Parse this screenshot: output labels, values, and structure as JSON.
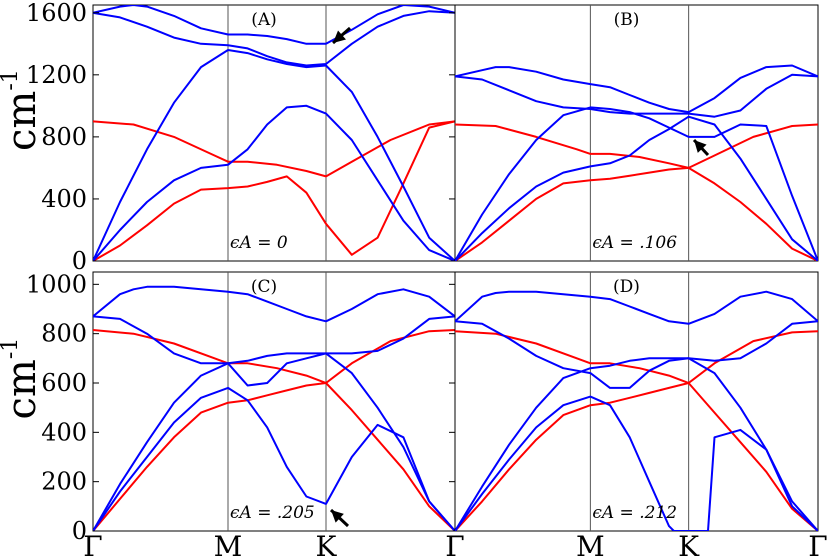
{
  "chart_data": [
    {
      "type": "line",
      "panel_label": "(A)",
      "annotation": "ϵA = 0",
      "x_ticks": [
        "Γ",
        "M",
        "K",
        "Γ"
      ],
      "ylabel": "cm-1",
      "y_ticks": [
        0,
        400,
        800,
        1200,
        1600
      ],
      "ylim": [
        0,
        1650
      ],
      "arrow": "at K near 1400",
      "series": [
        {
          "color": "#ff0000",
          "x": [
            0,
            0.2,
            0.4,
            0.6,
            0.8,
            1,
            1.2,
            1.4,
            1.6,
            1.8,
            2,
            2.2,
            2.4,
            2.6,
            2.8,
            3
          ],
          "values": [
            0,
            100,
            230,
            370,
            460,
            470,
            480,
            510,
            545,
            440,
            240,
            40,
            150,
            500,
            860,
            900
          ]
        },
        {
          "color": "#ff0000",
          "x": [
            0,
            0.3,
            0.6,
            0.9,
            1,
            1.2,
            1.5,
            1.8,
            2,
            2.2,
            2.5,
            2.8,
            3
          ],
          "values": [
            900,
            880,
            800,
            680,
            640,
            640,
            620,
            580,
            545,
            640,
            780,
            880,
            900
          ]
        },
        {
          "color": "#0000ff",
          "x": [
            0,
            0.2,
            0.4,
            0.6,
            0.8,
            1,
            1.2,
            1.4,
            1.6,
            1.8,
            2,
            2.2,
            2.4,
            2.6,
            2.8,
            3
          ],
          "values": [
            0,
            200,
            380,
            520,
            600,
            620,
            720,
            880,
            990,
            1000,
            950,
            780,
            520,
            260,
            70,
            0
          ]
        },
        {
          "color": "#0000ff",
          "x": [
            0,
            0.2,
            0.4,
            0.6,
            0.8,
            1,
            1.2,
            1.4,
            1.6,
            1.8,
            2,
            2.2,
            2.4,
            2.6,
            2.8,
            3
          ],
          "values": [
            0,
            380,
            720,
            1020,
            1250,
            1360,
            1340,
            1300,
            1270,
            1250,
            1260,
            1090,
            800,
            480,
            150,
            0
          ]
        },
        {
          "color": "#0000ff",
          "x": [
            0,
            0.2,
            0.4,
            0.6,
            0.8,
            1,
            1.2,
            1.4,
            1.6,
            1.8,
            2,
            2.2,
            2.4,
            2.6,
            2.8,
            3
          ],
          "values": [
            1600,
            1570,
            1510,
            1440,
            1400,
            1390,
            1370,
            1320,
            1280,
            1260,
            1270,
            1400,
            1510,
            1580,
            1610,
            1600
          ]
        },
        {
          "color": "#0000ff",
          "x": [
            0,
            0.2,
            0.3,
            0.4,
            0.6,
            0.8,
            1,
            1.2,
            1.4,
            1.6,
            1.8,
            2,
            2.2,
            2.4,
            2.6,
            2.8,
            3
          ],
          "values": [
            1600,
            1640,
            1650,
            1640,
            1580,
            1500,
            1460,
            1460,
            1450,
            1430,
            1400,
            1400,
            1490,
            1590,
            1650,
            1640,
            1600
          ]
        }
      ]
    },
    {
      "type": "line",
      "panel_label": "(B)",
      "annotation": "ϵA = .106",
      "x_ticks": [
        "Γ",
        "M",
        "K",
        "Γ"
      ],
      "ylim": [
        0,
        1650
      ],
      "arrow": "near K around 790",
      "series": [
        {
          "color": "#ff0000",
          "x": [
            0,
            0.2,
            0.4,
            0.6,
            0.8,
            1,
            1.2,
            1.4,
            1.6,
            1.8,
            2,
            2.2,
            2.4,
            2.6,
            2.8,
            3
          ],
          "values": [
            0,
            120,
            260,
            400,
            500,
            520,
            530,
            550,
            570,
            590,
            600,
            500,
            380,
            240,
            80,
            0
          ]
        },
        {
          "color": "#ff0000",
          "x": [
            0,
            0.3,
            0.6,
            0.9,
            1,
            1.2,
            1.5,
            1.8,
            2,
            2.2,
            2.5,
            2.8,
            3
          ],
          "values": [
            880,
            870,
            800,
            720,
            690,
            690,
            670,
            630,
            600,
            680,
            800,
            870,
            880
          ]
        },
        {
          "color": "#0000ff",
          "x": [
            0,
            0.2,
            0.4,
            0.6,
            0.8,
            1,
            1.2,
            1.4,
            1.6,
            1.8,
            2,
            2.2,
            2.4,
            2.6,
            2.8,
            3
          ],
          "values": [
            0,
            180,
            340,
            480,
            570,
            610,
            630,
            680,
            780,
            850,
            930,
            880,
            660,
            400,
            140,
            0
          ]
        },
        {
          "color": "#0000ff",
          "x": [
            0,
            0.2,
            0.4,
            0.6,
            0.8,
            1,
            1.2,
            1.4,
            1.6,
            1.8,
            2,
            2.2,
            2.4,
            2.6,
            2.8,
            3
          ],
          "values": [
            0,
            300,
            560,
            780,
            940,
            990,
            980,
            960,
            920,
            860,
            800,
            800,
            880,
            870,
            420,
            0
          ]
        },
        {
          "color": "#0000ff",
          "x": [
            0,
            0.2,
            0.4,
            0.6,
            0.8,
            1,
            1.2,
            1.4,
            1.6,
            1.8,
            2,
            2.2,
            2.4,
            2.6,
            2.8,
            3
          ],
          "values": [
            1190,
            1170,
            1100,
            1030,
            990,
            980,
            960,
            950,
            950,
            950,
            950,
            930,
            970,
            1110,
            1200,
            1190
          ]
        },
        {
          "color": "#0000ff",
          "x": [
            0,
            0.2,
            0.3,
            0.4,
            0.6,
            0.8,
            1,
            1.2,
            1.4,
            1.6,
            1.8,
            2,
            2.2,
            2.4,
            2.6,
            2.8,
            3
          ],
          "values": [
            1190,
            1230,
            1250,
            1250,
            1220,
            1170,
            1140,
            1120,
            1070,
            1020,
            980,
            960,
            1050,
            1180,
            1250,
            1260,
            1190
          ]
        }
      ]
    },
    {
      "type": "line",
      "panel_label": "(C)",
      "annotation": "ϵA = .205",
      "x_ticks": [
        "Γ",
        "M",
        "K",
        "Γ"
      ],
      "ylabel": "cm-1",
      "y_ticks": [
        0,
        200,
        400,
        600,
        800,
        1000
      ],
      "ylim": [
        0,
        1050
      ],
      "arrow": "at K near 110",
      "series": [
        {
          "color": "#ff0000",
          "x": [
            0,
            0.2,
            0.4,
            0.6,
            0.8,
            1,
            1.2,
            1.4,
            1.6,
            1.8,
            2,
            2.2,
            2.4,
            2.6,
            2.8,
            3
          ],
          "values": [
            0,
            130,
            260,
            380,
            480,
            520,
            530,
            550,
            570,
            590,
            600,
            490,
            370,
            250,
            100,
            0
          ]
        },
        {
          "color": "#ff0000",
          "x": [
            0,
            0.3,
            0.6,
            0.9,
            1,
            1.2,
            1.5,
            1.8,
            2,
            2.2,
            2.5,
            2.8,
            3
          ],
          "values": [
            815,
            800,
            760,
            700,
            680,
            680,
            660,
            630,
            600,
            680,
            770,
            810,
            815
          ]
        },
        {
          "color": "#0000ff",
          "x": [
            0,
            0.2,
            0.4,
            0.6,
            0.8,
            1,
            1.2,
            1.4,
            1.6,
            1.8,
            2,
            2.2,
            2.4,
            2.6,
            2.8,
            3
          ],
          "values": [
            0,
            160,
            300,
            440,
            540,
            580,
            530,
            420,
            260,
            140,
            110,
            300,
            430,
            380,
            120,
            0
          ]
        },
        {
          "color": "#0000ff",
          "x": [
            0,
            0.2,
            0.4,
            0.6,
            0.8,
            1,
            1.2,
            1.4,
            1.6,
            1.8,
            2,
            2.2,
            2.4,
            2.6,
            2.8,
            3
          ],
          "values": [
            0,
            190,
            360,
            520,
            630,
            680,
            690,
            710,
            720,
            720,
            720,
            640,
            500,
            340,
            120,
            0
          ]
        },
        {
          "color": "#0000ff",
          "x": [
            0,
            0.2,
            0.4,
            0.6,
            0.8,
            1,
            1.2,
            1.4,
            1.6,
            1.8,
            2,
            2.2,
            2.4,
            2.6,
            2.8,
            3
          ],
          "values": [
            870,
            860,
            800,
            720,
            680,
            680,
            590,
            600,
            680,
            700,
            720,
            720,
            730,
            780,
            860,
            870
          ]
        },
        {
          "color": "#0000ff",
          "x": [
            0,
            0.2,
            0.3,
            0.4,
            0.6,
            0.8,
            1,
            1.2,
            1.4,
            1.6,
            1.8,
            2,
            2.2,
            2.4,
            2.6,
            2.8,
            3
          ],
          "values": [
            870,
            960,
            980,
            990,
            990,
            980,
            970,
            960,
            930,
            900,
            870,
            850,
            900,
            960,
            980,
            950,
            870
          ]
        }
      ]
    },
    {
      "type": "line",
      "panel_label": "(D)",
      "annotation": "ϵA = .212",
      "x_ticks": [
        "Γ",
        "M",
        "K",
        "Γ"
      ],
      "ylim": [
        0,
        1050
      ],
      "series": [
        {
          "color": "#ff0000",
          "x": [
            0,
            0.2,
            0.4,
            0.6,
            0.8,
            1,
            1.2,
            1.4,
            1.6,
            1.8,
            2,
            2.2,
            2.4,
            2.6,
            2.8,
            3
          ],
          "values": [
            0,
            120,
            250,
            370,
            470,
            510,
            520,
            540,
            560,
            580,
            600,
            480,
            360,
            240,
            90,
            0
          ]
        },
        {
          "color": "#ff0000",
          "x": [
            0,
            0.3,
            0.6,
            0.9,
            1,
            1.2,
            1.5,
            1.8,
            2,
            2.2,
            2.5,
            2.8,
            3
          ],
          "values": [
            810,
            800,
            760,
            700,
            680,
            680,
            660,
            630,
            600,
            680,
            770,
            805,
            810
          ]
        },
        {
          "color": "#0000ff",
          "x": [
            0,
            0.2,
            0.4,
            0.6,
            0.8,
            1,
            1.2,
            1.4,
            1.6,
            1.8,
            1.85,
            2,
            2.15,
            2.2,
            2.4,
            2.6,
            2.8,
            3
          ],
          "values": [
            0,
            150,
            290,
            420,
            510,
            545,
            510,
            380,
            200,
            20,
            0,
            0,
            0,
            380,
            410,
            330,
            100,
            0
          ]
        },
        {
          "color": "#0000ff",
          "x": [
            0,
            0.2,
            0.4,
            0.6,
            0.8,
            1,
            1.2,
            1.4,
            1.6,
            1.8,
            2,
            2.2,
            2.4,
            2.6,
            2.8,
            3
          ],
          "values": [
            0,
            180,
            350,
            500,
            620,
            660,
            670,
            690,
            700,
            700,
            700,
            640,
            500,
            330,
            120,
            0
          ]
        },
        {
          "color": "#0000ff",
          "x": [
            0,
            0.2,
            0.4,
            0.6,
            0.8,
            1,
            1.2,
            1.4,
            1.6,
            1.8,
            2,
            2.2,
            2.4,
            2.6,
            2.8,
            3
          ],
          "values": [
            850,
            840,
            780,
            710,
            660,
            640,
            580,
            580,
            650,
            690,
            700,
            690,
            700,
            760,
            840,
            850
          ]
        },
        {
          "color": "#0000ff",
          "x": [
            0,
            0.2,
            0.3,
            0.4,
            0.6,
            0.8,
            1,
            1.2,
            1.4,
            1.6,
            1.8,
            2,
            2.2,
            2.4,
            2.6,
            2.8,
            3
          ],
          "values": [
            850,
            950,
            965,
            970,
            970,
            960,
            950,
            940,
            910,
            880,
            850,
            840,
            880,
            950,
            970,
            940,
            850
          ]
        }
      ]
    }
  ]
}
